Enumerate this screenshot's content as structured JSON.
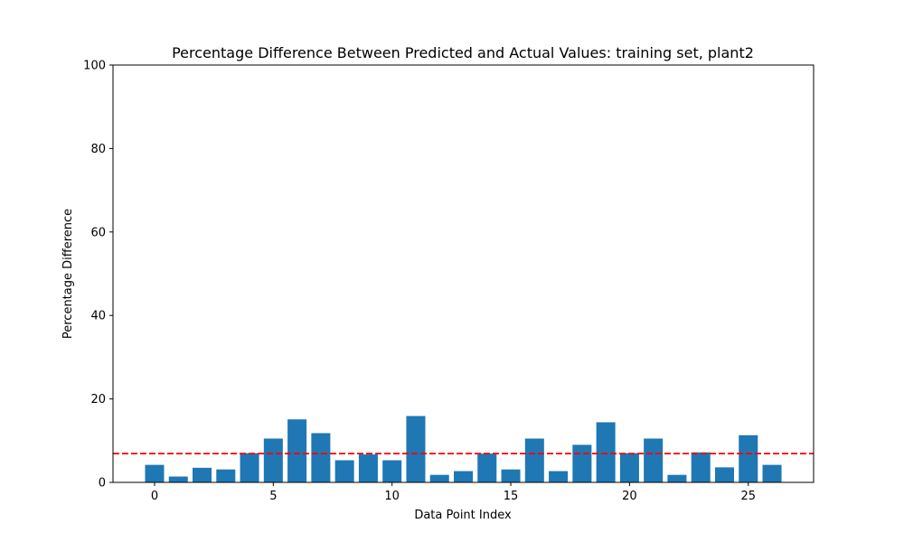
{
  "chart_data": {
    "type": "bar",
    "title": "Percentage Difference Between Predicted and Actual Values: training set, plant2",
    "xlabel": "Data Point Index",
    "ylabel": "Percentage Difference",
    "x": [
      0,
      1,
      2,
      3,
      4,
      5,
      6,
      7,
      8,
      9,
      10,
      11,
      12,
      13,
      14,
      15,
      16,
      17,
      18,
      19,
      20,
      21,
      22,
      23,
      24,
      25,
      26
    ],
    "values": [
      4.2,
      1.4,
      3.5,
      3.1,
      7.0,
      10.5,
      15.1,
      11.8,
      5.3,
      6.7,
      5.3,
      15.9,
      1.8,
      2.7,
      6.9,
      3.1,
      10.5,
      2.7,
      9.0,
      14.4,
      7.0,
      10.5,
      1.8,
      7.2,
      3.6,
      11.3,
      4.2
    ],
    "xlim": [
      -1.75,
      27.75
    ],
    "ylim": [
      0,
      100
    ],
    "x_ticks": [
      "0",
      "5",
      "10",
      "15",
      "20",
      "25"
    ],
    "y_ticks": [
      "0",
      "20",
      "40",
      "60",
      "80",
      "100"
    ],
    "reference_line": {
      "value": 6.9,
      "style": "dashed"
    },
    "grid": false,
    "bar_color": "#1f77b4",
    "line_color": "#ff0000"
  }
}
